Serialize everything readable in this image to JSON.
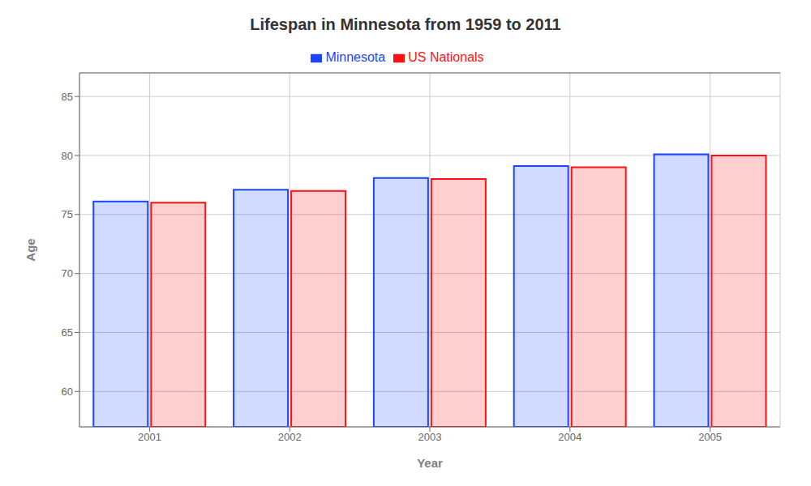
{
  "chart_data": {
    "type": "bar",
    "title": "Lifespan in Minnesota from 1959 to 2011",
    "xlabel": "Year",
    "ylabel": "Age",
    "categories": [
      "2001",
      "2002",
      "2003",
      "2004",
      "2005"
    ],
    "series": [
      {
        "name": "Minnesota",
        "color": "#1a44ff",
        "values": [
          76.1,
          77.1,
          78.1,
          79.1,
          80.1
        ]
      },
      {
        "name": "US Nationals",
        "color": "#ff1111",
        "values": [
          76.0,
          77.0,
          78.0,
          79.0,
          80.0
        ]
      }
    ],
    "ylim": [
      57,
      87
    ],
    "yticks": [
      60,
      65,
      70,
      75,
      80,
      85
    ],
    "grid": true,
    "legend": "top"
  }
}
